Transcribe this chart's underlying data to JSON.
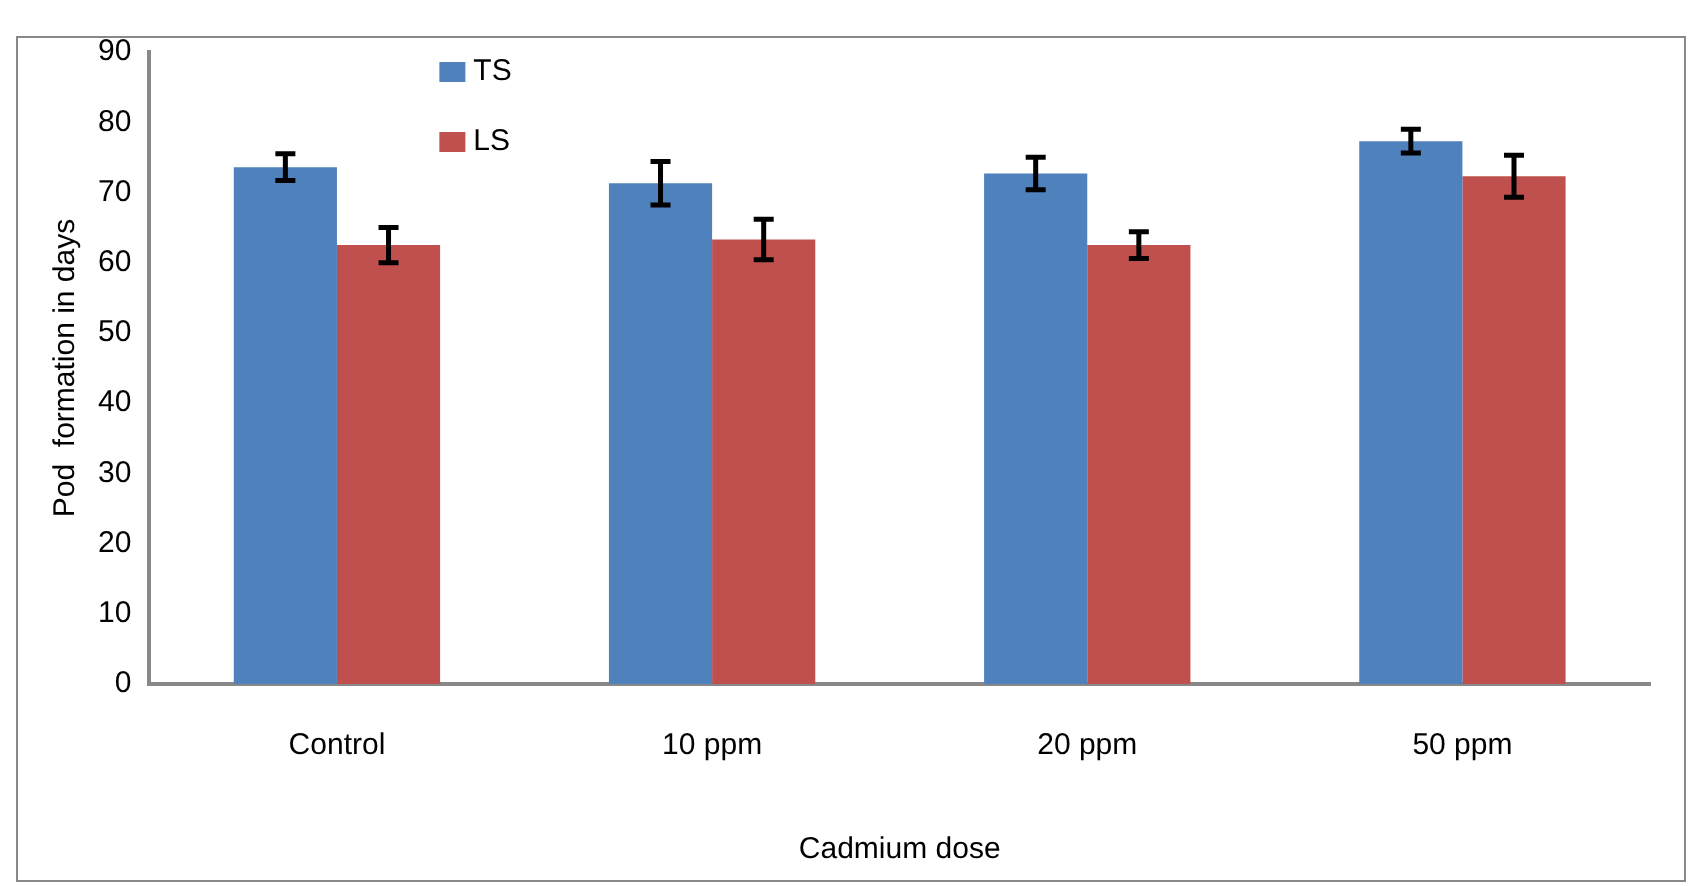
{
  "chart_data": {
    "type": "bar",
    "xlabel": "Cadmium dose",
    "ylabel": "Pod  formation in days",
    "categories": [
      "Control",
      "10 ppm",
      "20 ppm",
      "50 ppm"
    ],
    "series": [
      {
        "name": "TS",
        "color": "#4f81bd",
        "values": [
          73.6,
          71.3,
          72.7,
          77.3
        ],
        "errors": [
          1.9,
          3.1,
          2.3,
          1.7
        ]
      },
      {
        "name": "LS",
        "color": "#c0504d",
        "values": [
          62.5,
          63.3,
          62.5,
          72.3
        ],
        "errors": [
          2.5,
          2.9,
          1.9,
          3.0
        ]
      }
    ],
    "ylim": [
      0,
      90
    ],
    "yticks": [
      0,
      10,
      20,
      30,
      40,
      50,
      60,
      70,
      80,
      90
    ],
    "grid": false,
    "legend": "top left"
  }
}
